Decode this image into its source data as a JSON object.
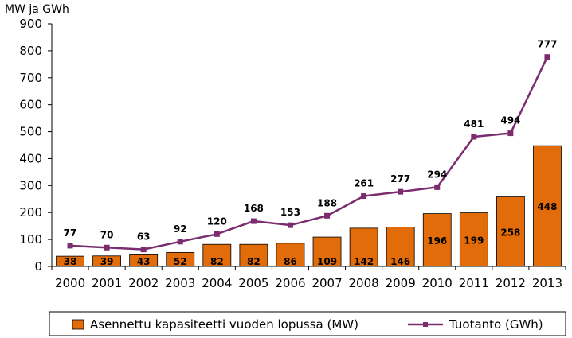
{
  "chart_data": {
    "type": "bar+line",
    "ylabel": "MW ja GWh",
    "ylim": [
      0,
      900
    ],
    "yticks": [
      "0",
      "100",
      "200",
      "300",
      "400",
      "500",
      "600",
      "700",
      "800",
      "900"
    ],
    "categories": [
      "2000",
      "2001",
      "2002",
      "2003",
      "2004",
      "2005",
      "2006",
      "2007",
      "2008",
      "2009",
      "2010",
      "2011",
      "2012",
      "2013"
    ],
    "series": [
      {
        "name": "Asennettu kapasiteetti vuoden lopussa (MW)",
        "kind": "bar",
        "color": "#E36C0A",
        "values": [
          38,
          39,
          43,
          52,
          82,
          82,
          86,
          109,
          142,
          146,
          196,
          199,
          258,
          448
        ]
      },
      {
        "name": "Tuotanto (GWh)",
        "kind": "line",
        "color": "#7B2C6E",
        "values": [
          77,
          70,
          63,
          92,
          120,
          168,
          153,
          188,
          261,
          277,
          294,
          481,
          494,
          777
        ]
      }
    ],
    "legend_position": "bottom",
    "grid": false
  }
}
